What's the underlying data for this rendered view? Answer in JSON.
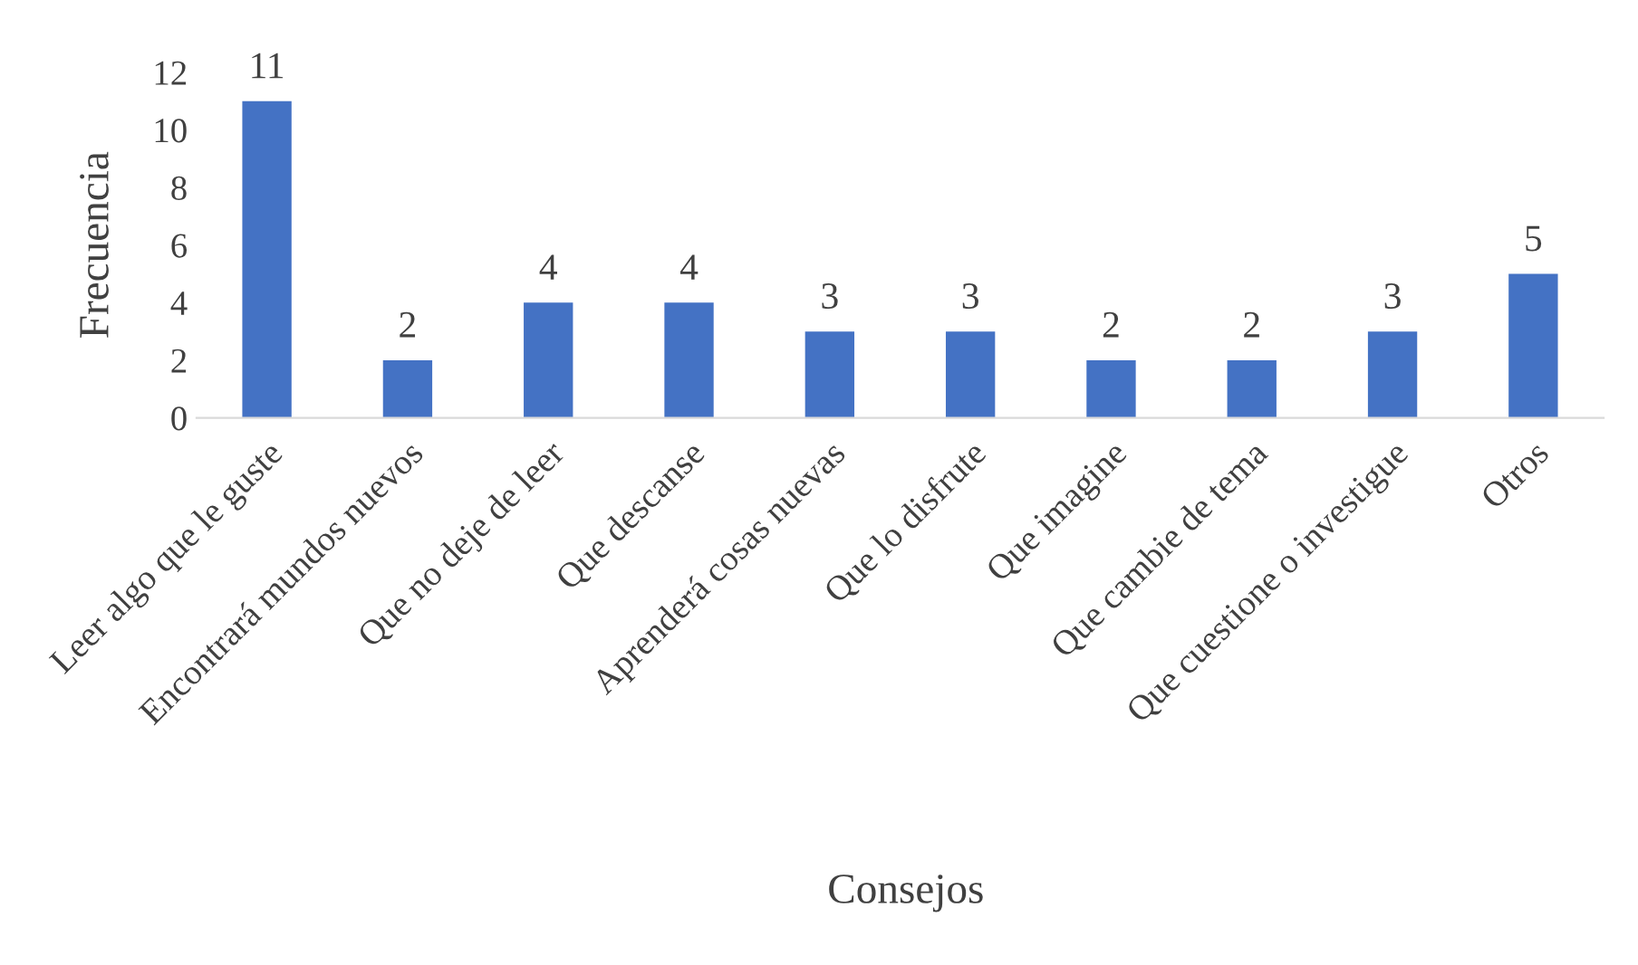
{
  "chart_data": {
    "type": "bar",
    "categories": [
      "Leer algo que le guste",
      "Encontrará mundos nuevos",
      "Que no deje de leer",
      "Que descanse",
      "Aprenderá cosas nuevas",
      "Que lo disfrute",
      "Que imagine",
      "Que cambie de tema",
      "Que cuestione o investigue",
      "Otros"
    ],
    "values": [
      11,
      2,
      4,
      4,
      3,
      3,
      2,
      2,
      3,
      5
    ],
    "color": "#4472c4",
    "xlabel": "Consejos",
    "ylabel": "Frecuencia",
    "ylim": [
      0,
      12
    ],
    "yticks": [
      0,
      2,
      4,
      6,
      8,
      10,
      12
    ],
    "data_labels": true,
    "grid": false,
    "legend": false
  }
}
